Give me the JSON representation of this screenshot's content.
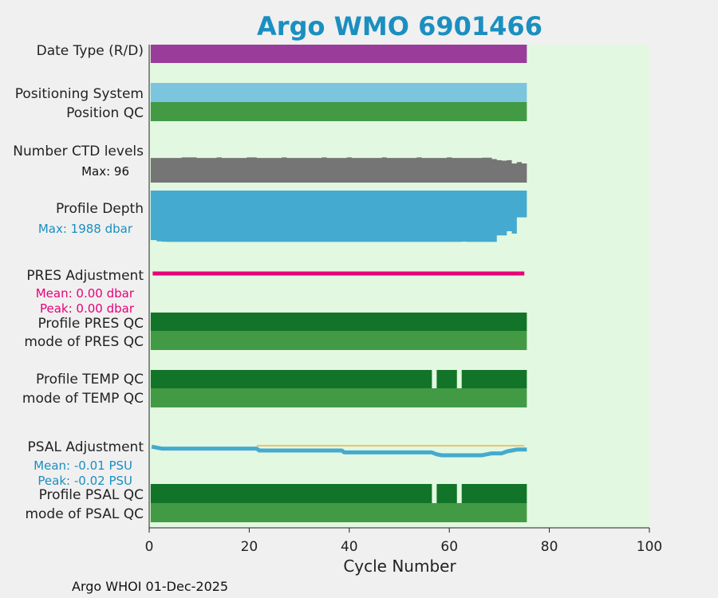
{
  "footer": "Argo WHOI 01-Dec-2025",
  "chart_data": {
    "type": "bar",
    "title": "Argo WMO 6901466",
    "xlabel": "Cycle Number",
    "xlim": [
      0,
      100
    ],
    "x_ticks": [
      "0",
      "20",
      "40",
      "60",
      "80",
      "100"
    ],
    "n_cycles": 75,
    "background_color": "#e3f8e0",
    "rows": [
      {
        "label": "Date Type (R/D)",
        "color": "#993c9a"
      },
      {
        "label": "Positioning System",
        "color": "#7cc5df"
      },
      {
        "label": "Position QC",
        "color": "#439a45"
      },
      {
        "label": "Number CTD levels",
        "color": "#757575",
        "annotation": "Max: 96",
        "annotation_color": "#111111"
      },
      {
        "label": "Profile Depth",
        "color": "#44aacf",
        "annotation": "Max: 1988 dbar",
        "annotation_color": "#1a8fc0"
      },
      {
        "label": "PRES Adjustment",
        "color": "#e8007a",
        "annotations": [
          "Mean: 0.00 dbar",
          "Peak: 0.00 dbar"
        ],
        "annotation_color": "#e8007a"
      },
      {
        "label": "Profile PRES QC",
        "color": "#127428"
      },
      {
        "label": "mode of PRES QC",
        "color": "#439a45"
      },
      {
        "label": "Profile TEMP QC",
        "color": "#127428",
        "gaps_at_cycles": [
          57,
          62
        ]
      },
      {
        "label": "mode of TEMP QC",
        "color": "#439a45"
      },
      {
        "label": "PSAL Adjustment",
        "color": "#44aacf",
        "reference_color": "#f0b050",
        "annotations": [
          "Mean: -0.01 PSU",
          "Peak: -0.02 PSU"
        ],
        "annotation_color": "#1a8fc0"
      },
      {
        "label": "Profile PSAL QC",
        "color": "#127428",
        "gaps_at_cycles": [
          57,
          62
        ]
      },
      {
        "label": "mode of PSAL QC",
        "color": "#439a45"
      }
    ],
    "ctd_levels_max": 96,
    "ctd_levels": [
      [
        0,
        90
      ],
      [
        5,
        90
      ],
      [
        6,
        92
      ],
      [
        8,
        92
      ],
      [
        9,
        90
      ],
      [
        12,
        90
      ],
      [
        13,
        92
      ],
      [
        14,
        90
      ],
      [
        18,
        90
      ],
      [
        19,
        92
      ],
      [
        21,
        90
      ],
      [
        25,
        90
      ],
      [
        26,
        92
      ],
      [
        27,
        90
      ],
      [
        33,
        90
      ],
      [
        34,
        92
      ],
      [
        35,
        90
      ],
      [
        38,
        90
      ],
      [
        39,
        92
      ],
      [
        40,
        90
      ],
      [
        45,
        90
      ],
      [
        46,
        92
      ],
      [
        47,
        90
      ],
      [
        52,
        90
      ],
      [
        53,
        92
      ],
      [
        54,
        90
      ],
      [
        58,
        90
      ],
      [
        59,
        92
      ],
      [
        60,
        90
      ],
      [
        65,
        90
      ],
      [
        66,
        91
      ],
      [
        68,
        86
      ],
      [
        69,
        82
      ],
      [
        70,
        80
      ],
      [
        71,
        82
      ],
      [
        72,
        70
      ],
      [
        73,
        75
      ],
      [
        74,
        70
      ],
      [
        75,
        70
      ]
    ],
    "profile_depth_max": 1988,
    "profile_depth": [
      [
        0,
        1900
      ],
      [
        1,
        1950
      ],
      [
        2,
        1960
      ],
      [
        3,
        1970
      ],
      [
        61,
        1970
      ],
      [
        62,
        1960
      ],
      [
        63,
        1970
      ],
      [
        68,
        1970
      ],
      [
        69,
        1720
      ],
      [
        70,
        1720
      ],
      [
        71,
        1560
      ],
      [
        72,
        1650
      ],
      [
        73,
        1030
      ],
      [
        74,
        1030
      ],
      [
        75,
        1030
      ]
    ],
    "psal_adjustment": [
      [
        0,
        -0.001
      ],
      [
        1,
        -0.002
      ],
      [
        2,
        -0.003
      ],
      [
        21,
        -0.003
      ],
      [
        21.5,
        -0.005
      ],
      [
        38,
        -0.005
      ],
      [
        38.5,
        -0.007
      ],
      [
        56,
        -0.007
      ],
      [
        57,
        -0.009
      ],
      [
        58,
        -0.01
      ],
      [
        66,
        -0.01
      ],
      [
        67,
        -0.009
      ],
      [
        68,
        -0.008
      ],
      [
        70,
        -0.008
      ],
      [
        71,
        -0.006
      ],
      [
        72,
        -0.005
      ],
      [
        73,
        -0.004
      ],
      [
        75,
        -0.004
      ]
    ],
    "psal_peak_ref": -0.02
  }
}
